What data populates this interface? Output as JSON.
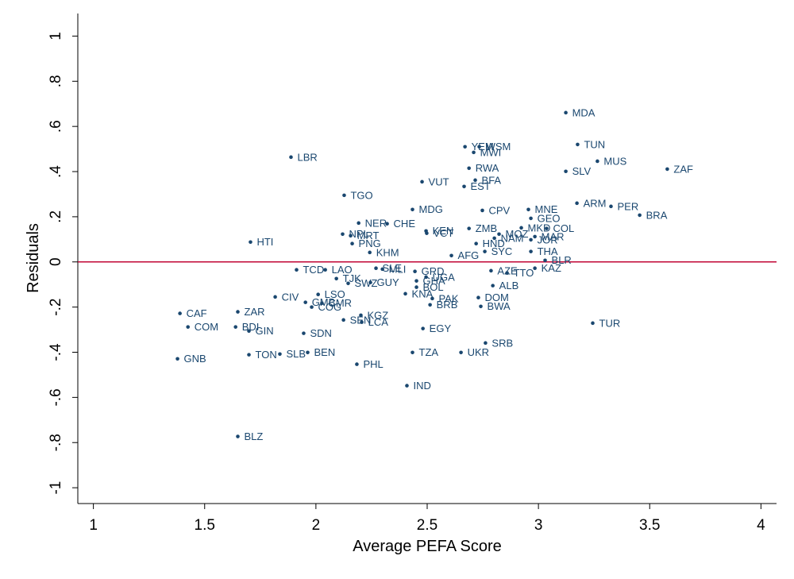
{
  "chart_data": {
    "type": "scatter",
    "x_label": "Average PEFA Score",
    "y_label": "Residuals",
    "xlim": [
      0.93,
      4.07
    ],
    "ylim": [
      -1.07,
      1.1
    ],
    "xticks": [
      1,
      1.5,
      2,
      2.5,
      3,
      3.5,
      4
    ],
    "yticks": [
      -1,
      {
        "value": -0.8,
        "label": "-.8"
      },
      {
        "value": -0.6,
        "label": "-.6"
      },
      {
        "value": -0.4,
        "label": "-.4"
      },
      {
        "value": -0.2,
        "label": "-.2"
      },
      0,
      {
        "value": 0.2,
        "label": ".2"
      },
      {
        "value": 0.4,
        "label": ".4"
      },
      {
        "value": 0.6,
        "label": ".6"
      },
      {
        "value": 0.8,
        "label": ".8"
      },
      1
    ],
    "color": "#1a476f",
    "reference_line": {
      "y": 0,
      "color": "#c10534"
    },
    "point_labels": [
      "MDA",
      "TUN",
      "MUS",
      "ZAF",
      "SLV",
      "ARM",
      "PER",
      "BRA",
      "YEM",
      "WSM",
      "MWI",
      "RWA",
      "BFA",
      "VUT",
      "EST",
      "LBR",
      "TGO",
      "MDG",
      "CPV",
      "MNE",
      "GEO",
      "NER",
      "CHE",
      "ZMB",
      "MKD",
      "COL",
      "MOZ",
      "MAR",
      "NAM",
      "JOR",
      "KEN",
      "VCT",
      "NPL",
      "MRT",
      "HND",
      "PNG",
      "HTI",
      "KHM",
      "SYC",
      "AFG",
      "THA",
      "BLR",
      "KAZ",
      "TTO",
      "AZE",
      "TCD",
      "LAO",
      "SLE",
      "MLI",
      "GRD",
      "UGA",
      "GHA",
      "TJK",
      "SWZ",
      "GUY",
      "BOL",
      "ALB",
      "KNA",
      "DOM",
      "PAK",
      "BRB",
      "BWA",
      "LSO",
      "CIV",
      "GMB",
      "CMR",
      "COG",
      "CAF",
      "ZAR",
      "KGZ",
      "SEN",
      "LCA",
      "EGY",
      "COM",
      "BDI",
      "GIN",
      "SDN",
      "TUR",
      "SRB",
      "GNB",
      "TON",
      "SLB",
      "BEN",
      "TZA",
      "UKR",
      "PHL",
      "IND",
      "BLZ"
    ],
    "x": [
      3.123,
      3.176,
      3.265,
      3.579,
      3.123,
      3.173,
      3.326,
      3.455,
      2.67,
      2.734,
      2.709,
      2.688,
      2.716,
      2.477,
      2.666,
      1.888,
      2.127,
      2.434,
      2.748,
      2.955,
      2.966,
      2.192,
      2.32,
      2.688,
      2.923,
      3.037,
      2.823,
      2.984,
      2.802,
      2.966,
      2.495,
      2.498,
      2.12,
      2.156,
      2.72,
      2.163,
      1.706,
      2.242,
      2.759,
      2.609,
      2.966,
      3.03,
      2.984,
      2.859,
      2.787,
      1.913,
      2.042,
      2.27,
      2.299,
      2.445,
      2.495,
      2.452,
      2.092,
      2.145,
      2.245,
      2.452,
      2.795,
      2.402,
      2.73,
      2.523,
      2.513,
      2.741,
      2.01,
      1.817,
      1.953,
      2.027,
      1.981,
      1.389,
      1.649,
      2.202,
      2.124,
      2.206,
      2.481,
      1.425,
      1.639,
      1.699,
      1.945,
      3.244,
      2.762,
      1.378,
      1.699,
      1.838,
      1.963,
      2.434,
      2.652,
      2.184,
      2.409,
      1.649
    ],
    "values": [
      0.661,
      0.52,
      0.446,
      0.411,
      0.401,
      0.26,
      0.246,
      0.207,
      0.51,
      0.51,
      0.485,
      0.415,
      0.362,
      0.355,
      0.334,
      0.464,
      0.295,
      0.232,
      0.228,
      0.232,
      0.193,
      0.172,
      0.169,
      0.148,
      0.151,
      0.148,
      0.123,
      0.112,
      0.105,
      0.098,
      0.137,
      0.127,
      0.123,
      0.116,
      0.081,
      0.081,
      0.088,
      0.042,
      0.046,
      0.028,
      0.046,
      0.007,
      -0.028,
      -0.049,
      -0.039,
      -0.035,
      -0.035,
      -0.028,
      -0.032,
      -0.042,
      -0.067,
      -0.084,
      -0.074,
      -0.095,
      -0.091,
      -0.112,
      -0.105,
      -0.141,
      -0.158,
      -0.162,
      -0.19,
      -0.197,
      -0.144,
      -0.155,
      -0.179,
      -0.183,
      -0.2,
      -0.228,
      -0.221,
      -0.236,
      -0.257,
      -0.267,
      -0.295,
      -0.288,
      -0.288,
      -0.306,
      -0.316,
      -0.271,
      -0.359,
      -0.429,
      -0.411,
      -0.408,
      -0.401,
      -0.401,
      -0.401,
      -0.453,
      -0.548,
      -0.773
    ]
  }
}
